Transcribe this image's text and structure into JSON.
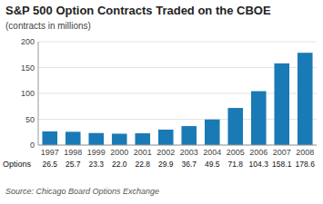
{
  "chart_data": {
    "type": "bar",
    "title": "S&P 500 Option Contracts Traded on the CBOE",
    "subtitle": "(contracts in millions)",
    "source": "Source: Chicago Board Options Exchange",
    "categories": [
      "1997",
      "1998",
      "1999",
      "2000",
      "2001",
      "2002",
      "2003",
      "2004",
      "2005",
      "2006",
      "2007",
      "2008"
    ],
    "series": [
      {
        "name": "Options",
        "color": "#1a7ab5",
        "values": [
          26.5,
          25.7,
          23.3,
          22.0,
          22.8,
          29.9,
          36.7,
          49.5,
          71.8,
          104.3,
          158.1,
          178.6
        ],
        "value_labels": [
          "26.5",
          "25.7",
          "23.3",
          "22.0",
          "22.8",
          "29.9",
          "36.7",
          "49.5",
          "71.8",
          "104.3",
          "158.1",
          "178.6"
        ]
      }
    ],
    "ylim": [
      0,
      200
    ],
    "yticks": [
      0,
      50,
      100,
      150,
      200
    ],
    "grid": true,
    "data_labels": true
  }
}
